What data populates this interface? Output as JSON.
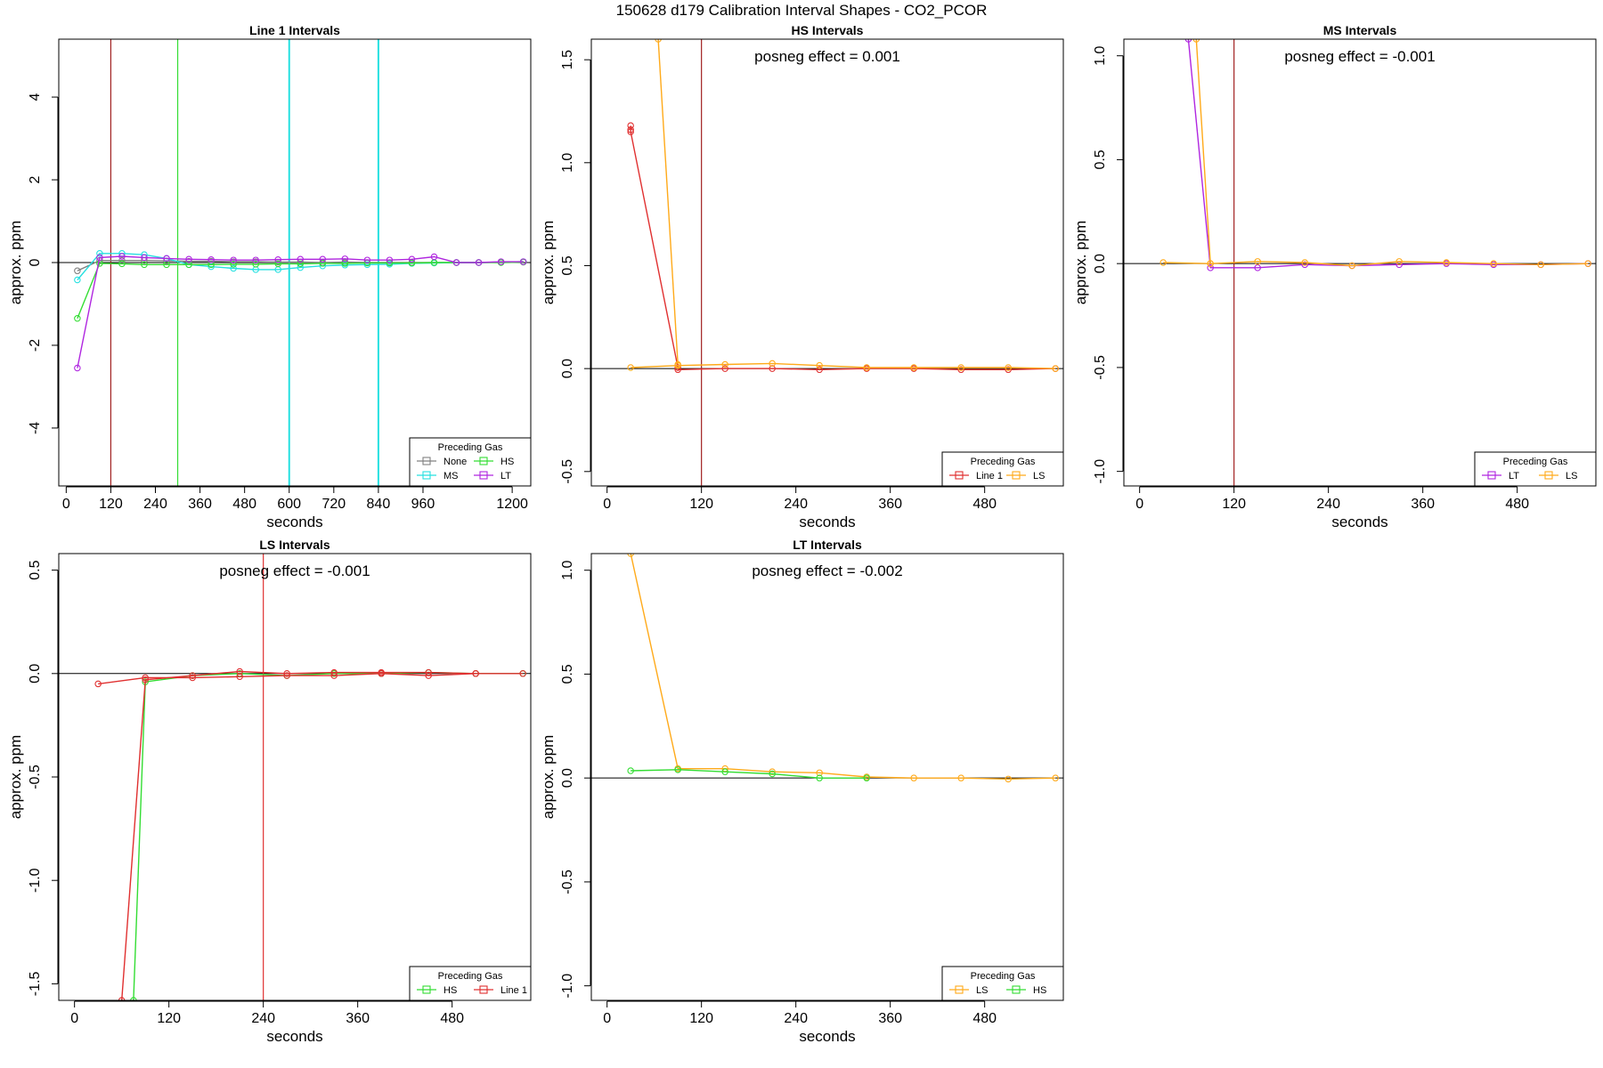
{
  "figure": {
    "title": "150628  d179   Calibration Interval Shapes - CO2_PCOR"
  },
  "colors": {
    "None": "#808080",
    "MS": "#26e0e0",
    "HS": "#33dd33",
    "LT": "#b026e0",
    "Line 1": "#e03030",
    "LS": "#ffaa1a",
    "marker": "#a02020"
  },
  "chart_data": [
    {
      "type": "line",
      "title": "Line 1 Intervals",
      "xlabel": "seconds",
      "ylabel": "approx. ppm",
      "xlim": [
        -20,
        1250
      ],
      "ylim": [
        -5.4,
        5.4
      ],
      "xticks": [
        "0",
        "120",
        "240",
        "360",
        "480",
        "600",
        "720",
        "840",
        "960",
        "1200"
      ],
      "xtick_values": [
        0,
        120,
        240,
        360,
        480,
        600,
        720,
        840,
        960,
        1200
      ],
      "yticks": [
        "-4",
        "-2",
        "0",
        "2",
        "4"
      ],
      "ytick_values": [
        -4,
        -2,
        0,
        2,
        4
      ],
      "vlines": [
        {
          "x": 120,
          "color": "marker"
        },
        {
          "x": 300,
          "color": "HS"
        },
        {
          "x": 600,
          "color": "MS"
        },
        {
          "x": 840,
          "color": "MS"
        }
      ],
      "annotation": "",
      "legend": {
        "title": "Preceding Gas",
        "position": "bottom-right",
        "columns": 2,
        "entries": [
          "None",
          "HS",
          "MS",
          "LT"
        ]
      },
      "series": [
        {
          "name": "None",
          "x": [
            30,
            90,
            150,
            210,
            270,
            330,
            390,
            450,
            510,
            570,
            630,
            690,
            750,
            810,
            870,
            930,
            990,
            1050,
            1110,
            1170,
            1230
          ],
          "y": [
            -0.2,
            0.05,
            0.05,
            0.05,
            0.04,
            0.03,
            0.03,
            0.02,
            0.02,
            0.01,
            0.01,
            0.0,
            0.01,
            0.0,
            0.0,
            0.0,
            0.0,
            0.0,
            0.0,
            0.01,
            0.02
          ]
        },
        {
          "name": "MS",
          "x": [
            30,
            90,
            150,
            210,
            270,
            330,
            390,
            450,
            510,
            570,
            630,
            690,
            750,
            810,
            870,
            930,
            990,
            1050,
            1110,
            1170,
            1230
          ],
          "y": [
            -0.42,
            0.22,
            0.22,
            0.19,
            0.1,
            -0.05,
            -0.1,
            -0.14,
            -0.17,
            -0.17,
            -0.12,
            -0.08,
            -0.06,
            -0.05,
            -0.04,
            -0.02,
            -0.01,
            0.0,
            0.0,
            0.01,
            0.02
          ]
        },
        {
          "name": "HS",
          "x": [
            30,
            90,
            150,
            210,
            270,
            330,
            390,
            450,
            510,
            570,
            630,
            690,
            750,
            810,
            870,
            930,
            990,
            1050,
            1110,
            1170,
            1230
          ],
          "y": [
            -1.35,
            -0.02,
            -0.03,
            -0.05,
            -0.05,
            -0.05,
            -0.05,
            -0.04,
            -0.04,
            -0.03,
            -0.03,
            -0.02,
            -0.02,
            -0.01,
            -0.01,
            -0.01,
            0.0,
            0.0,
            0.0,
            0.0,
            0.01
          ]
        },
        {
          "name": "LT",
          "x": [
            30,
            90,
            150,
            210,
            270,
            330,
            390,
            450,
            510,
            570,
            630,
            690,
            750,
            810,
            870,
            930,
            990,
            1050,
            1110,
            1170,
            1230
          ],
          "y": [
            -2.55,
            0.12,
            0.15,
            0.12,
            0.1,
            0.08,
            0.07,
            0.06,
            0.06,
            0.07,
            0.08,
            0.08,
            0.09,
            0.06,
            0.06,
            0.08,
            0.14,
            0.0,
            0.0,
            0.02,
            0.02
          ]
        }
      ]
    },
    {
      "type": "line",
      "title": "HS Intervals",
      "xlabel": "seconds",
      "ylabel": "approx. ppm",
      "xlim": [
        -20,
        580
      ],
      "ylim": [
        -0.57,
        1.6
      ],
      "xticks": [
        "0",
        "120",
        "240",
        "360",
        "480"
      ],
      "xtick_values": [
        0,
        120,
        240,
        360,
        480
      ],
      "yticks": [
        "-0.5",
        "0.0",
        "0.5",
        "1.0",
        "1.5"
      ],
      "ytick_values": [
        -0.5,
        0,
        0.5,
        1.0,
        1.5
      ],
      "vlines": [
        {
          "x": 120,
          "color": "marker"
        }
      ],
      "annotation": "posneg effect = 0.001",
      "legend": {
        "title": "Preceding Gas",
        "position": "bottom-right",
        "columns": 2,
        "entries": [
          "Line 1",
          "LS"
        ]
      },
      "series": [
        {
          "name": "Line 1",
          "x": [
            30,
            30,
            30,
            90,
            90,
            150,
            210,
            270,
            330,
            390,
            450,
            510,
            570
          ],
          "y": [
            1.18,
            1.16,
            1.15,
            0.005,
            -0.005,
            0.0,
            0.0,
            -0.005,
            0.0,
            0.0,
            -0.005,
            -0.005,
            0.0
          ]
        },
        {
          "name": "LS",
          "x": [
            30,
            90,
            150,
            210,
            270,
            330,
            390,
            450,
            510,
            570
          ],
          "y": [
            0.005,
            0.015,
            0.02,
            0.025,
            0.015,
            0.005,
            0.005,
            0.005,
            0.005,
            0.0
          ]
        },
        {
          "name": "LS",
          "x": [
            65,
            90
          ],
          "y": [
            1.6,
            0.02
          ]
        }
      ]
    },
    {
      "type": "line",
      "title": "MS Intervals",
      "xlabel": "seconds",
      "ylabel": "approx. ppm",
      "xlim": [
        -20,
        580
      ],
      "ylim": [
        -1.07,
        1.08
      ],
      "xticks": [
        "0",
        "120",
        "240",
        "360",
        "480"
      ],
      "xtick_values": [
        0,
        120,
        240,
        360,
        480
      ],
      "yticks": [
        "-1.0",
        "-0.5",
        "0.0",
        "0.5",
        "1.0"
      ],
      "ytick_values": [
        -1.0,
        -0.5,
        0,
        0.5,
        1.0
      ],
      "vlines": [
        {
          "x": 120,
          "color": "marker"
        }
      ],
      "annotation": "posneg effect = -0.001",
      "legend": {
        "title": "Preceding Gas",
        "position": "bottom-right",
        "columns": 2,
        "entries": [
          "LT",
          "LS"
        ]
      },
      "series": [
        {
          "name": "LT",
          "x": [
            62,
            90,
            150,
            210,
            270,
            330,
            390,
            450,
            510,
            570
          ],
          "y": [
            1.08,
            -0.02,
            -0.02,
            -0.005,
            -0.01,
            -0.005,
            0.0,
            -0.005,
            -0.005,
            0.0
          ]
        },
        {
          "name": "LS",
          "x": [
            30,
            90,
            150,
            210,
            270,
            330,
            390,
            450,
            510,
            570
          ],
          "y": [
            0.005,
            0.0,
            0.01,
            0.005,
            -0.01,
            0.01,
            0.005,
            0.0,
            -0.005,
            0.0
          ]
        },
        {
          "name": "LS",
          "x": [
            72,
            90
          ],
          "y": [
            1.08,
            0.0
          ]
        }
      ]
    },
    {
      "type": "line",
      "title": "LS Intervals",
      "xlabel": "seconds",
      "ylabel": "approx. ppm",
      "xlim": [
        -20,
        580
      ],
      "ylim": [
        -1.58,
        0.58
      ],
      "xticks": [
        "0",
        "120",
        "240",
        "360",
        "480"
      ],
      "xtick_values": [
        0,
        120,
        240,
        360,
        480
      ],
      "yticks": [
        "-1.5",
        "-1.0",
        "-0.5",
        "0.0",
        "0.5"
      ],
      "ytick_values": [
        -1.5,
        -1.0,
        -0.5,
        0,
        0.5
      ],
      "vlines": [
        {
          "x": 240,
          "color": "Line 1"
        }
      ],
      "annotation": "posneg effect = -0.001",
      "legend": {
        "title": "Preceding Gas",
        "position": "bottom-right",
        "columns": 2,
        "entries": [
          "HS",
          "Line 1"
        ]
      },
      "series": [
        {
          "name": "HS",
          "x": [
            75,
            90,
            150,
            210,
            270,
            330,
            390,
            450,
            510,
            570
          ],
          "y": [
            -1.58,
            -0.04,
            -0.01,
            0.0,
            -0.01,
            0.0,
            0.0,
            0.005,
            0.0,
            0.0
          ]
        },
        {
          "name": "Line 1",
          "x": [
            60,
            90,
            150,
            210,
            270,
            330,
            390,
            450,
            510,
            570
          ],
          "y": [
            -1.58,
            -0.03,
            -0.01,
            0.01,
            0.0,
            0.005,
            0.005,
            0.005,
            0.0,
            0.0
          ]
        },
        {
          "name": "Line 1",
          "x": [
            30,
            90,
            150,
            210,
            270,
            330,
            390,
            450,
            510
          ],
          "y": [
            -0.05,
            -0.02,
            -0.02,
            -0.015,
            -0.01,
            -0.01,
            0.0,
            -0.01,
            0.0
          ]
        }
      ]
    },
    {
      "type": "line",
      "title": "LT Intervals",
      "xlabel": "seconds",
      "ylabel": "approx. ppm",
      "xlim": [
        -20,
        580
      ],
      "ylim": [
        -1.07,
        1.08
      ],
      "xticks": [
        "0",
        "120",
        "240",
        "360",
        "480"
      ],
      "xtick_values": [
        0,
        120,
        240,
        360,
        480
      ],
      "yticks": [
        "-1.0",
        "-0.5",
        "0.0",
        "0.5",
        "1.0"
      ],
      "ytick_values": [
        -1.0,
        -0.5,
        0,
        0.5,
        1.0
      ],
      "vlines": [],
      "annotation": "posneg effect = -0.002",
      "legend": {
        "title": "Preceding Gas",
        "position": "bottom-right",
        "columns": 2,
        "entries": [
          "LS",
          "HS"
        ]
      },
      "series": [
        {
          "name": "LS",
          "x": [
            30,
            90,
            150,
            210,
            270,
            330,
            390,
            450,
            510,
            570
          ],
          "y": [
            1.08,
            0.045,
            0.045,
            0.03,
            0.025,
            0.005,
            0.0,
            0.0,
            -0.005,
            0.0
          ]
        },
        {
          "name": "HS",
          "x": [
            30,
            90,
            150,
            210,
            270,
            330
          ],
          "y": [
            0.035,
            0.04,
            0.03,
            0.02,
            0.0,
            0.0
          ]
        }
      ]
    }
  ]
}
